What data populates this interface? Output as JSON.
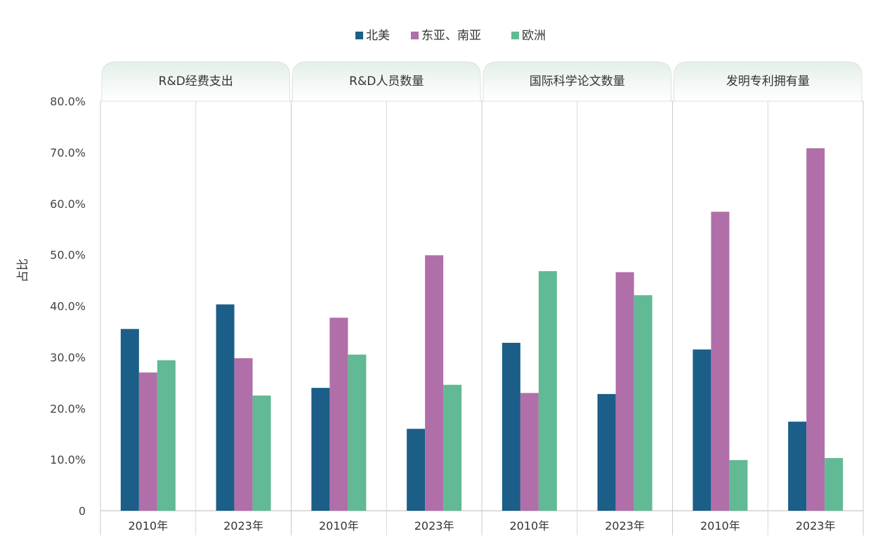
{
  "chart_data": {
    "type": "bar",
    "title": "",
    "ylabel": "占比",
    "xlabel": "",
    "ylim": [
      0,
      80
    ],
    "yticks": [
      "0",
      "10.0%",
      "20.0%",
      "30.0%",
      "40.0%",
      "50.0%",
      "60.0%",
      "70.0%",
      "80.0%"
    ],
    "legend_position": "top-center",
    "legend": [
      "北美",
      "东亚、南亚",
      "欧洲"
    ],
    "colors": {
      "北美": "#1b5e87",
      "东亚、南亚": "#b06fa8",
      "欧洲": "#62b995"
    },
    "panels": [
      {
        "title": "R&D经费支出",
        "categories": [
          "2010年",
          "2023年"
        ],
        "series": [
          {
            "name": "北美",
            "values": [
              35.5,
              40.3
            ]
          },
          {
            "name": "东亚、南亚",
            "values": [
              27.0,
              29.8
            ]
          },
          {
            "name": "欧洲",
            "values": [
              29.4,
              22.5
            ]
          }
        ]
      },
      {
        "title": "R&D人员数量",
        "categories": [
          "2010年",
          "2023年"
        ],
        "series": [
          {
            "name": "北美",
            "values": [
              24.0,
              16.0
            ]
          },
          {
            "name": "东亚、南亚",
            "values": [
              37.7,
              49.9
            ]
          },
          {
            "name": "欧洲",
            "values": [
              30.5,
              24.6
            ]
          }
        ]
      },
      {
        "title": "国际科学论文数量",
        "categories": [
          "2010年",
          "2023年"
        ],
        "series": [
          {
            "name": "北美",
            "values": [
              32.8,
              22.8
            ]
          },
          {
            "name": "东亚、南亚",
            "values": [
              23.0,
              46.6
            ]
          },
          {
            "name": "欧洲",
            "values": [
              46.8,
              42.1
            ]
          }
        ]
      },
      {
        "title": "发明专利拥有量",
        "categories": [
          "2010年",
          "2023年"
        ],
        "series": [
          {
            "name": "北美",
            "values": [
              31.5,
              17.4
            ]
          },
          {
            "name": "东亚、南亚",
            "values": [
              58.4,
              70.8
            ]
          },
          {
            "name": "欧洲",
            "values": [
              9.9,
              10.3
            ]
          }
        ]
      }
    ]
  }
}
